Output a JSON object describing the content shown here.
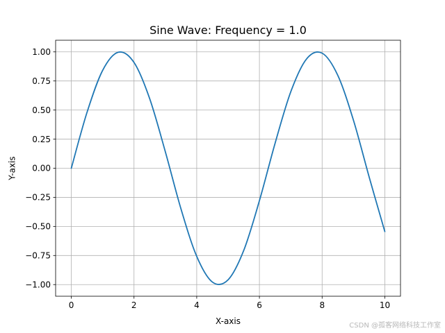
{
  "watermark": "CSDN @孤客网络科技工作室",
  "chart_data": {
    "type": "line",
    "title": "Sine Wave: Frequency = 1.0",
    "xlabel": "X-axis",
    "ylabel": "Y-axis",
    "xlim": [
      -0.5,
      10.5
    ],
    "ylim": [
      -1.1,
      1.1
    ],
    "xticks": [
      0,
      2,
      4,
      6,
      8,
      10
    ],
    "xtick_labels": [
      "0",
      "2",
      "4",
      "6",
      "8",
      "10"
    ],
    "yticks": [
      1.0,
      0.75,
      0.5,
      0.25,
      0.0,
      -0.25,
      -0.5,
      -0.75,
      -1.0
    ],
    "ytick_labels": [
      "1.00",
      "0.75",
      "0.50",
      "0.25",
      "0.00",
      "−0.25",
      "−0.50",
      "−0.75",
      "−1.00"
    ],
    "grid": true,
    "series": [
      {
        "color": "#1f77b4",
        "x": [
          0,
          0.5,
          1.0,
          1.5,
          2.0,
          2.5,
          3.0,
          3.5,
          4.0,
          4.5,
          5.0,
          5.5,
          6.0,
          6.5,
          7.0,
          7.5,
          8.0,
          8.5,
          9.0,
          9.5,
          10.0
        ],
        "y": [
          0.0,
          0.479,
          0.841,
          0.997,
          0.909,
          0.598,
          0.141,
          -0.351,
          -0.757,
          -0.978,
          -0.959,
          -0.706,
          -0.279,
          0.215,
          0.657,
          0.938,
          0.989,
          0.798,
          0.412,
          -0.075,
          -0.544
        ]
      }
    ]
  }
}
